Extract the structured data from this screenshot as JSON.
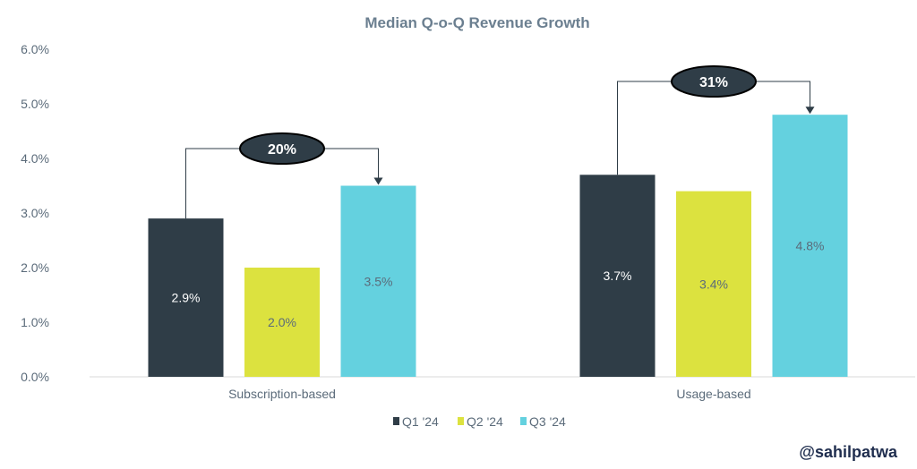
{
  "colors": {
    "title": "#6b7f90",
    "axis_text": "#5b6b7a",
    "q1": "#2f3d47",
    "q2": "#dce23f",
    "q3": "#64d1df",
    "label_dark": "#ffffff",
    "label_light": "#5b6b7a",
    "badge_fill": "#2f3d47",
    "badge_text": "#ffffff",
    "credit": "#1f2d4e"
  },
  "credit": "@sahilpatwa",
  "chart_data": {
    "type": "bar",
    "title": "Median Q-o-Q Revenue Growth",
    "xlabel": "",
    "ylabel": "",
    "ylim": [
      0,
      6
    ],
    "yticks": [
      0,
      1,
      2,
      3,
      4,
      5,
      6
    ],
    "ytick_labels": [
      "0.0%",
      "1.0%",
      "2.0%",
      "3.0%",
      "4.0%",
      "5.0%",
      "6.0%"
    ],
    "categories": [
      "Subscription-based",
      "Usage-based"
    ],
    "series": [
      {
        "name": "Q1 '24",
        "values": [
          2.9,
          3.7
        ],
        "labels": [
          "2.9%",
          "3.7%"
        ]
      },
      {
        "name": "Q2 '24",
        "values": [
          2.0,
          3.4
        ],
        "labels": [
          "2.0%",
          "3.4%"
        ]
      },
      {
        "name": "Q3 '24",
        "values": [
          3.5,
          4.8
        ],
        "labels": [
          "3.5%",
          "4.8%"
        ]
      }
    ],
    "annotations": [
      {
        "category": "Subscription-based",
        "text": "20%",
        "from": "Q1 '24",
        "to": "Q3 '24"
      },
      {
        "category": "Usage-based",
        "text": "31%",
        "from": "Q1 '24",
        "to": "Q3 '24"
      }
    ],
    "legend": "bottom-center",
    "grid": false
  }
}
